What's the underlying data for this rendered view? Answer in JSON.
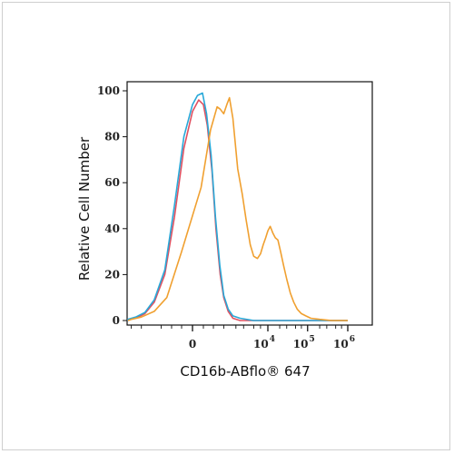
{
  "chart_data": {
    "type": "line",
    "xlabel": "CD16b-ABflo® 647",
    "ylabel": "Relative Cell Number",
    "y_ticks": [
      "0",
      "20",
      "40",
      "60",
      "80",
      "100"
    ],
    "x_ticks": [
      {
        "base": "0",
        "exp": "",
        "value": 0
      },
      {
        "base": "10",
        "exp": "4",
        "value": 10000
      },
      {
        "base": "10",
        "exp": "5",
        "value": 100000
      },
      {
        "base": "10",
        "exp": "6",
        "value": 1000000
      }
    ],
    "ylim": [
      0,
      100
    ],
    "x_scale": "biexponential",
    "grid": false,
    "legend": "none",
    "series": [
      {
        "color": "#e05060",
        "points": [
          [
            -8000,
            0
          ],
          [
            -6000,
            0.3
          ],
          [
            -4000,
            1
          ],
          [
            -2500,
            3
          ],
          [
            -1500,
            8
          ],
          [
            -800,
            20
          ],
          [
            -400,
            45
          ],
          [
            -150,
            75
          ],
          [
            0,
            91
          ],
          [
            100,
            96
          ],
          [
            200,
            94
          ],
          [
            300,
            85
          ],
          [
            450,
            65
          ],
          [
            600,
            40
          ],
          [
            800,
            20
          ],
          [
            1000,
            10
          ],
          [
            1300,
            4
          ],
          [
            1700,
            1
          ],
          [
            2500,
            0
          ],
          [
            5000,
            0
          ],
          [
            100000,
            0
          ],
          [
            1000000,
            0
          ]
        ]
      },
      {
        "color": "#28a8d8",
        "points": [
          [
            -8000,
            0
          ],
          [
            -6000,
            0.5
          ],
          [
            -4000,
            1.5
          ],
          [
            -2500,
            3.5
          ],
          [
            -1500,
            9
          ],
          [
            -800,
            22
          ],
          [
            -400,
            50
          ],
          [
            -150,
            80
          ],
          [
            0,
            94
          ],
          [
            80,
            98
          ],
          [
            180,
            99
          ],
          [
            280,
            90
          ],
          [
            420,
            72
          ],
          [
            580,
            45
          ],
          [
            780,
            24
          ],
          [
            1000,
            11
          ],
          [
            1300,
            5
          ],
          [
            1700,
            2
          ],
          [
            2500,
            1
          ],
          [
            5000,
            0
          ],
          [
            100000,
            0
          ],
          [
            1000000,
            0
          ]
        ]
      },
      {
        "color": "#f0a030",
        "points": [
          [
            -8000,
            0
          ],
          [
            -5000,
            0.5
          ],
          [
            -3000,
            1.5
          ],
          [
            -1500,
            4
          ],
          [
            -700,
            10
          ],
          [
            -200,
            30
          ],
          [
            150,
            58
          ],
          [
            400,
            83
          ],
          [
            650,
            93
          ],
          [
            800,
            92
          ],
          [
            1000,
            90
          ],
          [
            1200,
            94
          ],
          [
            1400,
            97
          ],
          [
            1700,
            88
          ],
          [
            2200,
            66
          ],
          [
            2800,
            55
          ],
          [
            3400,
            44
          ],
          [
            4200,
            33
          ],
          [
            5000,
            28
          ],
          [
            6000,
            27
          ],
          [
            7000,
            29
          ],
          [
            8000,
            33
          ],
          [
            9000,
            36
          ],
          [
            10000,
            39
          ],
          [
            11500,
            41
          ],
          [
            13500,
            38
          ],
          [
            15500,
            36
          ],
          [
            18000,
            35
          ],
          [
            21000,
            30
          ],
          [
            25000,
            24
          ],
          [
            30000,
            18
          ],
          [
            37000,
            12
          ],
          [
            45000,
            8
          ],
          [
            55000,
            5
          ],
          [
            70000,
            3
          ],
          [
            90000,
            2
          ],
          [
            120000,
            1
          ],
          [
            200000,
            0.5
          ],
          [
            400000,
            0
          ],
          [
            1000000,
            0
          ]
        ]
      }
    ]
  }
}
